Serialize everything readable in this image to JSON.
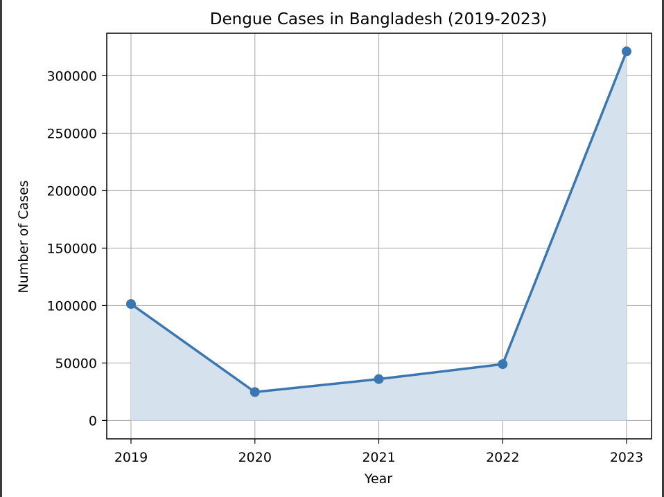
{
  "chart_data": {
    "type": "area",
    "title": "Dengue Cases in Bangladesh (2019-2023)",
    "xlabel": "Year",
    "ylabel": "Number of Cases",
    "categories": [
      "2019",
      "2020",
      "2021",
      "2022",
      "2023"
    ],
    "series": [
      {
        "values": [
          101354,
          24741,
          36000,
          49000,
          321179
        ]
      }
    ],
    "ylim": [
      -16000,
      337000
    ],
    "yticks": [
      0,
      50000,
      100000,
      150000,
      200000,
      250000,
      300000
    ],
    "ytick_labels": [
      "0",
      "50000",
      "100000",
      "150000",
      "200000",
      "250000",
      "300000"
    ],
    "grid": true,
    "colors": {
      "line": "#3a76af",
      "fill": "#d5e1ed",
      "grid": "#b0b0b0"
    }
  }
}
